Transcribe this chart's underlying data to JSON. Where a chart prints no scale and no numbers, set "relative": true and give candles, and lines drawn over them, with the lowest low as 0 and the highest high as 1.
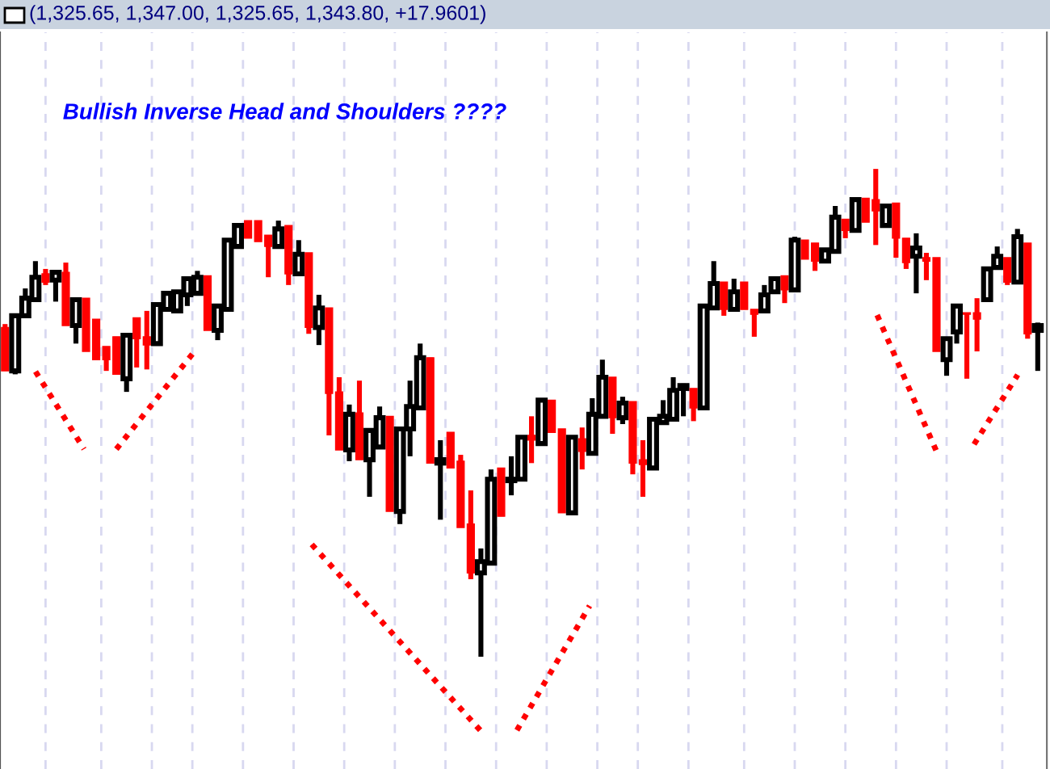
{
  "chart_data": {
    "type": "candlestick",
    "relative": true,
    "grid": "x",
    "title": "Bullish Inverse Head and Shoulders ????",
    "annotations": [
      "(1,325.65, 1,347.00, 1,325.65, 1,343.80, +17.9601)"
    ],
    "categories": [
      null,
      null,
      null,
      null,
      null,
      null,
      null,
      null,
      null,
      null,
      null,
      null,
      null,
      null,
      null,
      null,
      null,
      null,
      null,
      null,
      null,
      null,
      null,
      null,
      null,
      null,
      null,
      null,
      null,
      null,
      null,
      null,
      null,
      null,
      null,
      null,
      null,
      null,
      null,
      null,
      null,
      null,
      null,
      null,
      null,
      null,
      null,
      null,
      null,
      null,
      null,
      null,
      null,
      null,
      null,
      null,
      null,
      null,
      null,
      null,
      null,
      null,
      null,
      null,
      null,
      null,
      null,
      null,
      null,
      null,
      null,
      null,
      null,
      null,
      null,
      null,
      null,
      null,
      null,
      null,
      null,
      null,
      null,
      null,
      null,
      null,
      null,
      null,
      null,
      null,
      null,
      null,
      null,
      null,
      null,
      null,
      null,
      null,
      null,
      null,
      null,
      null,
      null
    ],
    "ohlc": [
      [
        0.675,
        0.682,
        0.586,
        0.586
      ],
      [
        0.586,
        0.699,
        0.579,
        0.699
      ],
      [
        0.699,
        0.755,
        0.699,
        0.735
      ],
      [
        0.732,
        0.811,
        0.732,
        0.778
      ],
      [
        0.785,
        0.795,
        0.762,
        0.768
      ],
      [
        0.772,
        0.791,
        0.728,
        0.788
      ],
      [
        0.788,
        0.808,
        0.679,
        0.679
      ],
      [
        0.679,
        0.732,
        0.642,
        0.732
      ],
      [
        0.735,
        0.735,
        0.626,
        0.626
      ],
      [
        0.692,
        0.692,
        0.609,
        0.609
      ],
      [
        0.636,
        0.636,
        0.586,
        0.609
      ],
      [
        0.656,
        0.656,
        0.579,
        0.579
      ],
      [
        0.57,
        0.659,
        0.543,
        0.659
      ],
      [
        0.695,
        0.695,
        0.593,
        0.652
      ],
      [
        0.656,
        0.709,
        0.589,
        0.639
      ],
      [
        0.642,
        0.722,
        0.642,
        0.722
      ],
      [
        0.712,
        0.745,
        0.712,
        0.745
      ],
      [
        0.709,
        0.748,
        0.709,
        0.748
      ],
      [
        0.742,
        0.775,
        0.719,
        0.775
      ],
      [
        0.745,
        0.791,
        0.745,
        0.778
      ],
      [
        0.781,
        0.781,
        0.669,
        0.669
      ],
      [
        0.669,
        0.719,
        0.649,
        0.719
      ],
      [
        0.712,
        0.854,
        0.712,
        0.854
      ],
      [
        0.841,
        0.884,
        0.841,
        0.884
      ],
      [
        0.894,
        0.894,
        0.858,
        0.858
      ],
      [
        0.894,
        0.894,
        0.851,
        0.851
      ],
      [
        0.864,
        0.864,
        0.778,
        0.841
      ],
      [
        0.841,
        0.894,
        0.841,
        0.877
      ],
      [
        0.884,
        0.884,
        0.762,
        0.785
      ],
      [
        0.785,
        0.854,
        0.785,
        0.825
      ],
      [
        0.828,
        0.828,
        0.662,
        0.675
      ],
      [
        0.675,
        0.742,
        0.639,
        0.715
      ],
      [
        0.715,
        0.715,
        0.454,
        0.54
      ],
      [
        0.543,
        0.573,
        0.424,
        0.424
      ],
      [
        0.424,
        0.517,
        0.401,
        0.497
      ],
      [
        0.5,
        0.566,
        0.404,
        0.404
      ],
      [
        0.404,
        0.464,
        0.328,
        0.464
      ],
      [
        0.43,
        0.513,
        0.43,
        0.49
      ],
      [
        0.493,
        0.493,
        0.298,
        0.298
      ],
      [
        0.298,
        0.467,
        0.272,
        0.467
      ],
      [
        0.467,
        0.566,
        0.411,
        0.513
      ],
      [
        0.51,
        0.642,
        0.51,
        0.613
      ],
      [
        0.613,
        0.613,
        0.397,
        0.397
      ],
      [
        0.397,
        0.444,
        0.281,
        0.404
      ],
      [
        0.46,
        0.46,
        0.387,
        0.387
      ],
      [
        0.401,
        0.414,
        0.265,
        0.265
      ],
      [
        0.272,
        0.341,
        0.159,
        0.172
      ],
      [
        0.172,
        0.222,
        0,
        0.195
      ],
      [
        0.192,
        0.384,
        0.192,
        0.364
      ],
      [
        0.387,
        0.387,
        0.288,
        0.288
      ],
      [
        0.361,
        0.411,
        0.331,
        0.364
      ],
      [
        0.364,
        0.45,
        0.364,
        0.45
      ],
      [
        0.454,
        0.493,
        0.397,
        0.444
      ],
      [
        0.437,
        0.526,
        0.437,
        0.526
      ],
      [
        0.526,
        0.526,
        0.46,
        0.46
      ],
      [
        0.467,
        0.467,
        0.295,
        0.295
      ],
      [
        0.295,
        0.45,
        0.295,
        0.45
      ],
      [
        0.447,
        0.47,
        0.384,
        0.421
      ],
      [
        0.417,
        0.53,
        0.417,
        0.497
      ],
      [
        0.493,
        0.609,
        0.493,
        0.573
      ],
      [
        0.573,
        0.573,
        0.457,
        0.49
      ],
      [
        0.49,
        0.533,
        0.477,
        0.52
      ],
      [
        0.523,
        0.523,
        0.374,
        0.397
      ],
      [
        0.404,
        0.444,
        0.328,
        0.394
      ],
      [
        0.387,
        0.487,
        0.387,
        0.487
      ],
      [
        0.48,
        0.526,
        0.48,
        0.493
      ],
      [
        0.487,
        0.573,
        0.487,
        0.546
      ],
      [
        0.55,
        0.56,
        0.493,
        0.556
      ],
      [
        0.55,
        0.55,
        0.483,
        0.51
      ],
      [
        0.51,
        0.719,
        0.51,
        0.719
      ],
      [
        0.715,
        0.811,
        0.715,
        0.765
      ],
      [
        0.768,
        0.768,
        0.699,
        0.712
      ],
      [
        0.712,
        0.775,
        0.712,
        0.748
      ],
      [
        0.768,
        0.768,
        0.712,
        0.712
      ],
      [
        0.712,
        0.712,
        0.656,
        0.702
      ],
      [
        0.709,
        0.762,
        0.709,
        0.742
      ],
      [
        0.748,
        0.775,
        0.748,
        0.775
      ],
      [
        0.781,
        0.781,
        0.725,
        0.752
      ],
      [
        0.752,
        0.861,
        0.752,
        0.854
      ],
      [
        0.854,
        0.854,
        0.815,
        0.815
      ],
      [
        0.848,
        0.848,
        0.791,
        0.811
      ],
      [
        0.811,
        0.834,
        0.811,
        0.834
      ],
      [
        0.831,
        0.924,
        0.831,
        0.901
      ],
      [
        0.897,
        0.897,
        0.858,
        0.874
      ],
      [
        0.874,
        0.937,
        0.874,
        0.937
      ],
      [
        0.94,
        0.94,
        0.891,
        0.891
      ],
      [
        0.937,
        1,
        0.844,
        0.914
      ],
      [
        0.884,
        0.924,
        0.884,
        0.924
      ],
      [
        0.93,
        0.93,
        0.818,
        0.858
      ],
      [
        0.858,
        0.858,
        0.795,
        0.808
      ],
      [
        0.821,
        0.868,
        0.745,
        0.838
      ],
      [
        0.818,
        0.828,
        0.772,
        0.811
      ],
      [
        0.818,
        0.818,
        0.626,
        0.626
      ],
      [
        0.609,
        0.652,
        0.576,
        0.652
      ],
      [
        0.666,
        0.719,
        0.642,
        0.719
      ],
      [
        0.705,
        0.705,
        0.57,
        0.702
      ],
      [
        0.705,
        0.735,
        0.626,
        0.692
      ],
      [
        0.732,
        0.795,
        0.732,
        0.795
      ],
      [
        0.798,
        0.841,
        0.798,
        0.821
      ],
      [
        0.818,
        0.818,
        0.762,
        0.768
      ],
      [
        0.768,
        0.877,
        0.768,
        0.861
      ],
      [
        0.848,
        0.848,
        0.652,
        0.662
      ],
      [
        0.669,
        0.685,
        0.586,
        0.679
      ]
    ],
    "colors": [
      "#ff0000",
      "#000000",
      "#000000",
      "#000000",
      "#ff0000",
      "#000000",
      "#ff0000",
      "#000000",
      "#ff0000",
      "#ff0000",
      "#ff0000",
      "#ff0000",
      "#000000",
      "#ff0000",
      "#ff0000",
      "#000000",
      "#000000",
      "#000000",
      "#000000",
      "#000000",
      "#ff0000",
      "#000000",
      "#000000",
      "#000000",
      "#ff0000",
      "#ff0000",
      "#ff0000",
      "#000000",
      "#ff0000",
      "#000000",
      "#ff0000",
      "#000000",
      "#ff0000",
      "#ff0000",
      "#000000",
      "#ff0000",
      "#000000",
      "#000000",
      "#ff0000",
      "#000000",
      "#000000",
      "#000000",
      "#ff0000",
      "#000000",
      "#ff0000",
      "#ff0000",
      "#ff0000",
      "#000000",
      "#000000",
      "#ff0000",
      "#000000",
      "#000000",
      "#ff0000",
      "#000000",
      "#ff0000",
      "#ff0000",
      "#000000",
      "#ff0000",
      "#000000",
      "#000000",
      "#ff0000",
      "#000000",
      "#ff0000",
      "#ff0000",
      "#000000",
      "#000000",
      "#000000",
      "#000000",
      "#ff0000",
      "#000000",
      "#000000",
      "#ff0000",
      "#000000",
      "#ff0000",
      "#ff0000",
      "#000000",
      "#000000",
      "#ff0000",
      "#000000",
      "#ff0000",
      "#ff0000",
      "#000000",
      "#000000",
      "#ff0000",
      "#000000",
      "#ff0000",
      "#ff0000",
      "#000000",
      "#ff0000",
      "#ff0000",
      "#000000",
      "#ff0000",
      "#ff0000",
      "#000000",
      "#000000",
      "#ff0000",
      "#ff0000",
      "#000000",
      "#000000",
      "#ff0000",
      "#000000",
      "#ff0000",
      "#000000"
    ]
  }
}
